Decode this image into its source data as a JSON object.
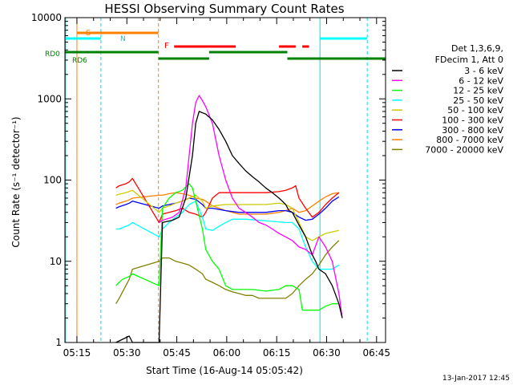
{
  "chart_data": {
    "type": "line",
    "title": "HESSI Observing Summary Count Rates",
    "xlabel": "Start Time (16-Aug-14 05:05:42)",
    "ylabel": "Count Rate (s⁻¹ detector⁻¹)",
    "yscale": "log",
    "xlim_minutes": [
      5.7,
      102
    ],
    "ylim": [
      1,
      10000
    ],
    "grid": false,
    "legend_position": "right",
    "x_ticks": [
      "05:15",
      "05:30",
      "05:45",
      "06:00",
      "06:15",
      "06:30",
      "06:45"
    ],
    "y_ticks": [
      "1",
      "10",
      "100",
      "1000",
      "10000"
    ],
    "legend_header": [
      "Det 1,3,6,9,",
      "FDecim 1, Att 0"
    ],
    "series": [
      {
        "name": "3 - 6 keV",
        "color": "#000000",
        "x": [
          21,
          25,
          26,
          34,
          35,
          38,
          40,
          42,
          44,
          45,
          46,
          48,
          50,
          52,
          54,
          56,
          58,
          60,
          62,
          64,
          66,
          68,
          70,
          71,
          72,
          73,
          74,
          76,
          78,
          80,
          81,
          82,
          84,
          86,
          88,
          89
        ],
        "values": [
          1.0,
          1.2,
          1.0,
          1.0,
          30,
          32,
          35,
          60,
          200,
          500,
          700,
          650,
          550,
          420,
          300,
          200,
          160,
          130,
          110,
          95,
          80,
          70,
          60,
          55,
          50,
          42,
          40,
          28,
          20,
          12,
          10,
          8,
          7,
          5,
          3,
          2
        ]
      },
      {
        "name": "6 - 12 keV",
        "color": "#ff00ff",
        "x": [
          34,
          35,
          38,
          40,
          42,
          44,
          45,
          46,
          47,
          48,
          50,
          52,
          54,
          56,
          58,
          60,
          62,
          64,
          66,
          68,
          70,
          72,
          74,
          76,
          78,
          80,
          82,
          84,
          86,
          88,
          89
        ],
        "values": [
          30,
          32,
          35,
          40,
          80,
          500,
          900,
          1100,
          950,
          800,
          500,
          200,
          100,
          60,
          45,
          40,
          35,
          30,
          28,
          25,
          22,
          20,
          18,
          15,
          14,
          12,
          20,
          15,
          10,
          4,
          2
        ]
      },
      {
        "name": "12 - 25 keV",
        "color": "#00ff00",
        "x": [
          21,
          22,
          23,
          25,
          26,
          34,
          35,
          37,
          39,
          41,
          43,
          44,
          45,
          47,
          48,
          50,
          52,
          54,
          56,
          58,
          62,
          66,
          70,
          72,
          74,
          76,
          77,
          78,
          80,
          82,
          84,
          86,
          88
        ],
        "values": [
          5,
          5.5,
          6,
          6.5,
          7,
          5,
          45,
          60,
          70,
          75,
          90,
          80,
          55,
          25,
          14,
          10,
          8,
          5,
          4.5,
          4.5,
          4.5,
          4.3,
          4.5,
          5,
          5,
          4.5,
          2.5,
          2.5,
          2.5,
          2.5,
          2.8,
          3,
          3
        ]
      },
      {
        "name": "25 - 50 keV",
        "color": "#00ffff",
        "x": [
          21,
          22,
          24,
          25,
          26,
          34,
          35,
          37,
          39,
          41,
          43,
          45,
          47,
          48,
          50,
          52,
          54,
          56,
          60,
          64,
          68,
          72,
          74,
          76,
          78,
          80,
          82,
          84,
          86,
          88
        ],
        "values": [
          25,
          25,
          27,
          28,
          30,
          20,
          25,
          30,
          35,
          40,
          50,
          55,
          35,
          25,
          24,
          27,
          30,
          33,
          33,
          32,
          31,
          30,
          30,
          25,
          15,
          10,
          8,
          8,
          8,
          9
        ]
      },
      {
        "name": "50 - 100 keV",
        "color": "#cccc00",
        "x": [
          21,
          22,
          24,
          25,
          26,
          34,
          35,
          37,
          39,
          41,
          43,
          45,
          47,
          48,
          50,
          54,
          58,
          62,
          66,
          70,
          72,
          74,
          76,
          78,
          80,
          82,
          84,
          86,
          88
        ],
        "values": [
          65,
          67,
          70,
          72,
          75,
          40,
          45,
          48,
          52,
          55,
          60,
          65,
          55,
          45,
          48,
          50,
          50,
          50,
          50,
          52,
          50,
          45,
          30,
          20,
          18,
          20,
          22,
          23,
          24
        ]
      },
      {
        "name": "100 - 300 keV",
        "color": "#ff0000",
        "x": [
          21,
          22,
          24,
          25,
          26,
          34,
          35,
          37,
          39,
          41,
          43,
          45,
          47,
          48,
          50,
          52,
          54,
          58,
          62,
          66,
          70,
          72,
          74,
          75,
          76,
          78,
          80,
          82,
          84,
          86,
          88
        ],
        "values": [
          80,
          85,
          90,
          95,
          105,
          30,
          38,
          40,
          42,
          45,
          40,
          38,
          35,
          40,
          60,
          70,
          70,
          70,
          70,
          70,
          72,
          75,
          80,
          85,
          60,
          45,
          35,
          40,
          50,
          60,
          70
        ]
      },
      {
        "name": "300 - 800 keV",
        "color": "#0000ff",
        "x": [
          21,
          22,
          24,
          25,
          26,
          34,
          35,
          37,
          39,
          41,
          43,
          45,
          47,
          48,
          50,
          54,
          58,
          62,
          66,
          70,
          72,
          74,
          76,
          78,
          80,
          82,
          84,
          86,
          88
        ],
        "values": [
          45,
          47,
          50,
          52,
          55,
          45,
          48,
          50,
          52,
          55,
          60,
          58,
          50,
          45,
          45,
          42,
          40,
          40,
          40,
          42,
          42,
          40,
          35,
          32,
          33,
          38,
          45,
          55,
          62
        ]
      },
      {
        "name": "800 - 7000 keV",
        "color": "#ff8000",
        "x": [
          21,
          22,
          24,
          25,
          26,
          34,
          35,
          37,
          39,
          41,
          43,
          45,
          47,
          48,
          50,
          54,
          58,
          62,
          66,
          70,
          72,
          74,
          76,
          78,
          80,
          82,
          84,
          86,
          88
        ],
        "values": [
          50,
          52,
          55,
          57,
          60,
          65,
          65,
          68,
          70,
          68,
          65,
          60,
          58,
          55,
          48,
          42,
          38,
          38,
          38,
          40,
          42,
          45,
          40,
          42,
          48,
          55,
          62,
          68,
          70
        ]
      },
      {
        "name": "7000 - 20000 keV",
        "color": "#808000",
        "x": [
          21,
          22,
          24,
          25,
          26,
          34,
          35,
          37,
          39,
          41,
          43,
          45,
          47,
          48,
          50,
          52,
          54,
          56,
          58,
          60,
          62,
          64,
          66,
          68,
          70,
          72,
          74,
          76,
          78,
          80,
          82,
          84,
          86,
          88
        ],
        "values": [
          3,
          3.5,
          5,
          6,
          8,
          10,
          11,
          11,
          10,
          9.5,
          9,
          8,
          7,
          6,
          5.5,
          5,
          4.5,
          4.2,
          4,
          3.8,
          3.8,
          3.5,
          3.5,
          3.5,
          3.5,
          3.5,
          4,
          5,
          6,
          7,
          9,
          12,
          15,
          18
        ]
      }
    ],
    "flag_labels": {
      "s": "S",
      "n": "N",
      "f": "F",
      "rd0": "RD0",
      "rd6": "RD6"
    },
    "footer_date": "13-Jan-2017 12:45"
  }
}
